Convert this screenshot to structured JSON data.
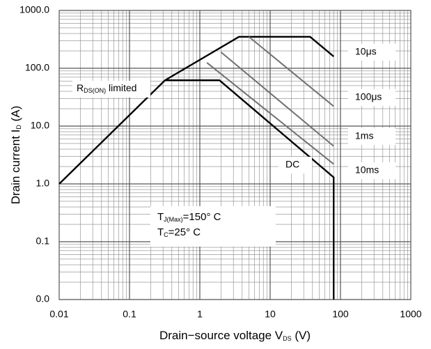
{
  "chart_data": {
    "type": "line",
    "xlabel": {
      "text": "Drain−source voltage V",
      "sub": "DS",
      "rest": " (V)"
    },
    "ylabel": {
      "text": "Drain current I",
      "sub": "D",
      "rest": " (A)"
    },
    "log_x": true,
    "log_y": true,
    "grid": true,
    "minor_grid": true,
    "xlim": [
      0.01,
      1000
    ],
    "xticks": [
      0.01,
      0.1,
      1,
      10,
      100,
      1000
    ],
    "ylim": [
      0.01,
      1000
    ],
    "yticks": [
      {
        "value": 0.01,
        "label": "0.0"
      },
      {
        "value": 0.1,
        "label": "0.1"
      },
      {
        "value": 1,
        "label": "1.0"
      },
      {
        "value": 10,
        "label": "10.0"
      },
      {
        "value": 100,
        "label": "100.0"
      },
      {
        "value": 1000,
        "label": "1000.0"
      }
    ],
    "series": [
      {
        "name": "10μs",
        "color": "#000000",
        "x": [
          0.32,
          3.6,
          37,
          80
        ],
        "values": [
          62,
          350,
          350,
          160
        ]
      },
      {
        "name": "100μs",
        "color": "#707070",
        "x": [
          5,
          80
        ],
        "values": [
          350,
          22
        ]
      },
      {
        "name": "1ms",
        "color": "#707070",
        "x": [
          2.0,
          80
        ],
        "values": [
          190,
          4.5
        ]
      },
      {
        "name": "10ms",
        "color": "#707070",
        "x": [
          1.26,
          80
        ],
        "values": [
          125,
          2.2
        ]
      },
      {
        "name": "DC",
        "color": "#000000",
        "x": [
          0.01,
          0.32,
          1.9,
          80,
          80
        ],
        "values": [
          1,
          62,
          62,
          1.3,
          0.01
        ]
      }
    ],
    "annotations": [
      {
        "text": "R",
        "sub": "DS(ON)",
        "rest": " limited"
      },
      {
        "text": "T",
        "sub": "J(Max)",
        "rest": "=150° C"
      },
      {
        "text": "T",
        "sub": "C",
        "rest": "=25° C"
      }
    ]
  }
}
